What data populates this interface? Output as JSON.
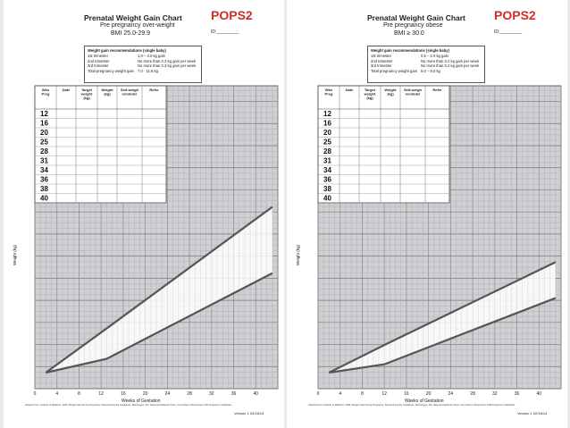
{
  "panels": [
    {
      "title": "Prenatal Weight Gain Chart",
      "subtitle": "Pre pregnancy over-weight",
      "bmi": "BMI 25.0-29.9",
      "brand": "POPS2",
      "id_label": "ID:_________",
      "rec_title": "Weight gain recommendations (single baby)",
      "rec_rows": [
        {
          "label": "1st trimester",
          "value": "1.0 – 3.0 kg gain"
        },
        {
          "label": "2nd trimester",
          "value": "No more than 0.3 kg gain per week"
        },
        {
          "label": "3rd trimester",
          "value": "No more than 0.3 kg gain per week"
        },
        {
          "label": "Total pregnancy weight gain",
          "value": "7.0 - 11.5 kg"
        }
      ],
      "table_headers": [
        "Wks Preg",
        "Date",
        "Target weight (kg)",
        "Weight (kg)",
        "Self-weigh reminder",
        "Refer"
      ],
      "weeks": [
        "12",
        "16",
        "20",
        "25",
        "28",
        "31",
        "34",
        "36",
        "38",
        "40"
      ],
      "y_label": "Weight (kg)",
      "x_label": "Weeks of Gestation",
      "x_ticks": [
        "0",
        "4",
        "8",
        "12",
        "16",
        "20",
        "24",
        "28",
        "32",
        "36",
        "40"
      ],
      "footer": "Adapted from: Institute of Medicine. 2009. Weight Gain During Pregnancy: Reexamining the Guidelines. Washington, DC: National Academic Press. Committee to Reexamine IOM Pregnancy Guidelines.",
      "version": "Version 1 02/16/14",
      "upper_line": [
        [
          2,
          0
        ],
        [
          13,
          0.16
        ],
        [
          43,
          0.6
        ]
      ],
      "lower_line": [
        [
          2,
          0
        ],
        [
          13,
          0.05
        ],
        [
          43,
          0.36
        ]
      ]
    },
    {
      "title": "Prenatal Weight Gain Chart",
      "subtitle": "Pre pregnancy obese",
      "bmi": "BMI ≥ 30.0",
      "brand": "POPS2",
      "id_label": "ID:_________",
      "rec_title": "Weight gain recommendations (single baby)",
      "rec_rows": [
        {
          "label": "1st trimester",
          "value": "0.5 – 2.0 kg gain"
        },
        {
          "label": "2nd trimester",
          "value": "No more than 0.2 kg gain per week"
        },
        {
          "label": "3rd trimester",
          "value": "No more than 0.2 kg gain per week"
        },
        {
          "label": "Total pregnancy weight gain",
          "value": "5.0 – 9.0 kg"
        }
      ],
      "table_headers": [
        "Wks Preg",
        "Date",
        "Target weight (kg)",
        "Weight (kg)",
        "Self-weigh reminder",
        "Refer"
      ],
      "weeks": [
        "12",
        "16",
        "20",
        "25",
        "28",
        "31",
        "34",
        "36",
        "38",
        "40"
      ],
      "y_label": "Weight (kg)",
      "x_label": "Weeks of Gestation",
      "x_ticks": [
        "0",
        "4",
        "8",
        "12",
        "16",
        "20",
        "24",
        "28",
        "32",
        "36",
        "40"
      ],
      "footer": "Adapted from: Institute of Medicine. 2009. Weight Gain During Pregnancy: Reexamining the Guidelines. Washington, DC: National Academic Press. Committee to Reexamine IOM Pregnancy Guidelines.",
      "version": "Version 1 02/16/14",
      "upper_line": [
        [
          2,
          0
        ],
        [
          12,
          0.1
        ],
        [
          43,
          0.4
        ]
      ],
      "lower_line": [
        [
          2,
          0
        ],
        [
          12,
          0.03
        ],
        [
          43,
          0.27
        ]
      ]
    }
  ]
}
